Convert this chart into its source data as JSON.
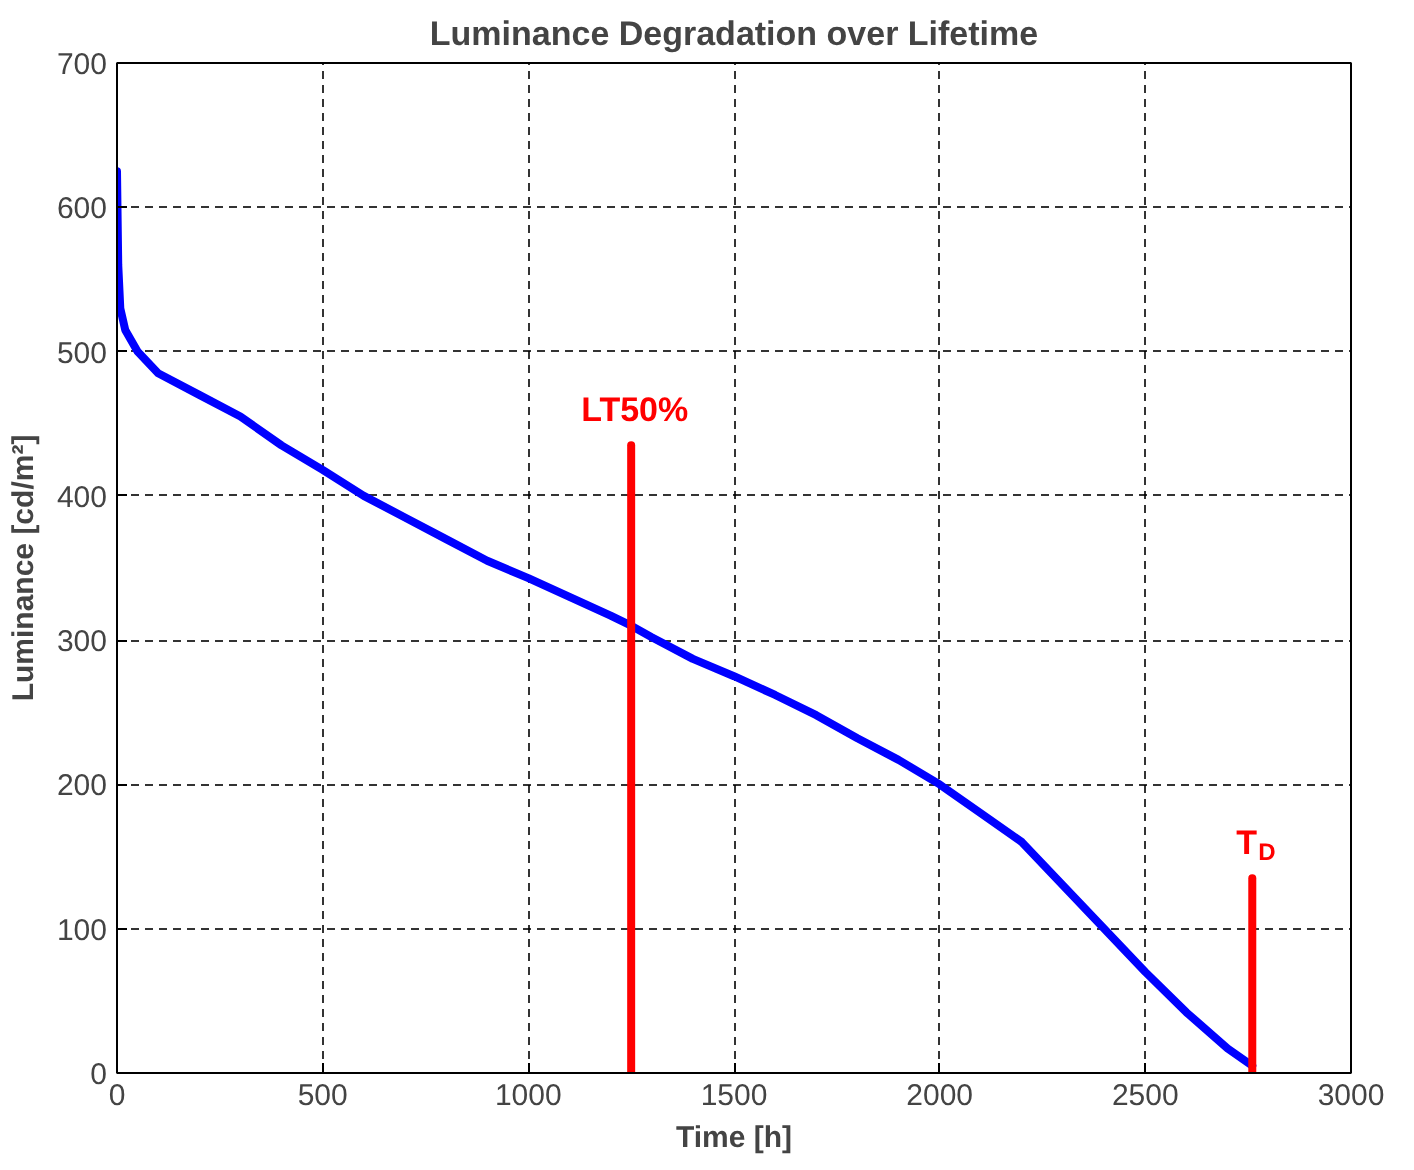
{
  "chart_data": {
    "type": "line",
    "title": "Luminance Degradation over Lifetime",
    "xlabel": "Time [h]",
    "ylabel": "Luminance [cd/m²]",
    "xlim": [
      0,
      3000
    ],
    "ylim": [
      0,
      700
    ],
    "xticks": [
      0,
      500,
      1000,
      1500,
      2000,
      2500,
      3000
    ],
    "yticks": [
      0,
      100,
      200,
      300,
      400,
      500,
      600,
      700
    ],
    "grid": true,
    "series": [
      {
        "color": "#0000ff",
        "x": [
          0,
          3,
          8,
          20,
          50,
          100,
          200,
          300,
          400,
          500,
          600,
          700,
          800,
          900,
          1000,
          1100,
          1200,
          1250,
          1300,
          1400,
          1500,
          1600,
          1700,
          1800,
          1900,
          2000,
          2100,
          2200,
          2300,
          2400,
          2500,
          2600,
          2700,
          2760
        ],
        "values": [
          625,
          560,
          530,
          515,
          500,
          485,
          470,
          455,
          435,
          418,
          400,
          385,
          370,
          355,
          343,
          330,
          317,
          310,
          302,
          287,
          275,
          262,
          248,
          232,
          217,
          200,
          180,
          160,
          130,
          100,
          70,
          42,
          17,
          5
        ]
      },
      {
        "color": "#ff0000",
        "x": [
          1250,
          1250
        ],
        "values": [
          0,
          435
        ]
      },
      {
        "color": "#ff0000",
        "x": [
          2760,
          2760
        ],
        "values": [
          0,
          135
        ]
      }
    ],
    "annotations": [
      {
        "text": "LT50%",
        "x": 1250,
        "y": 435
      },
      {
        "text": "T$_{D}$",
        "x": 2760,
        "y": 135
      }
    ]
  }
}
